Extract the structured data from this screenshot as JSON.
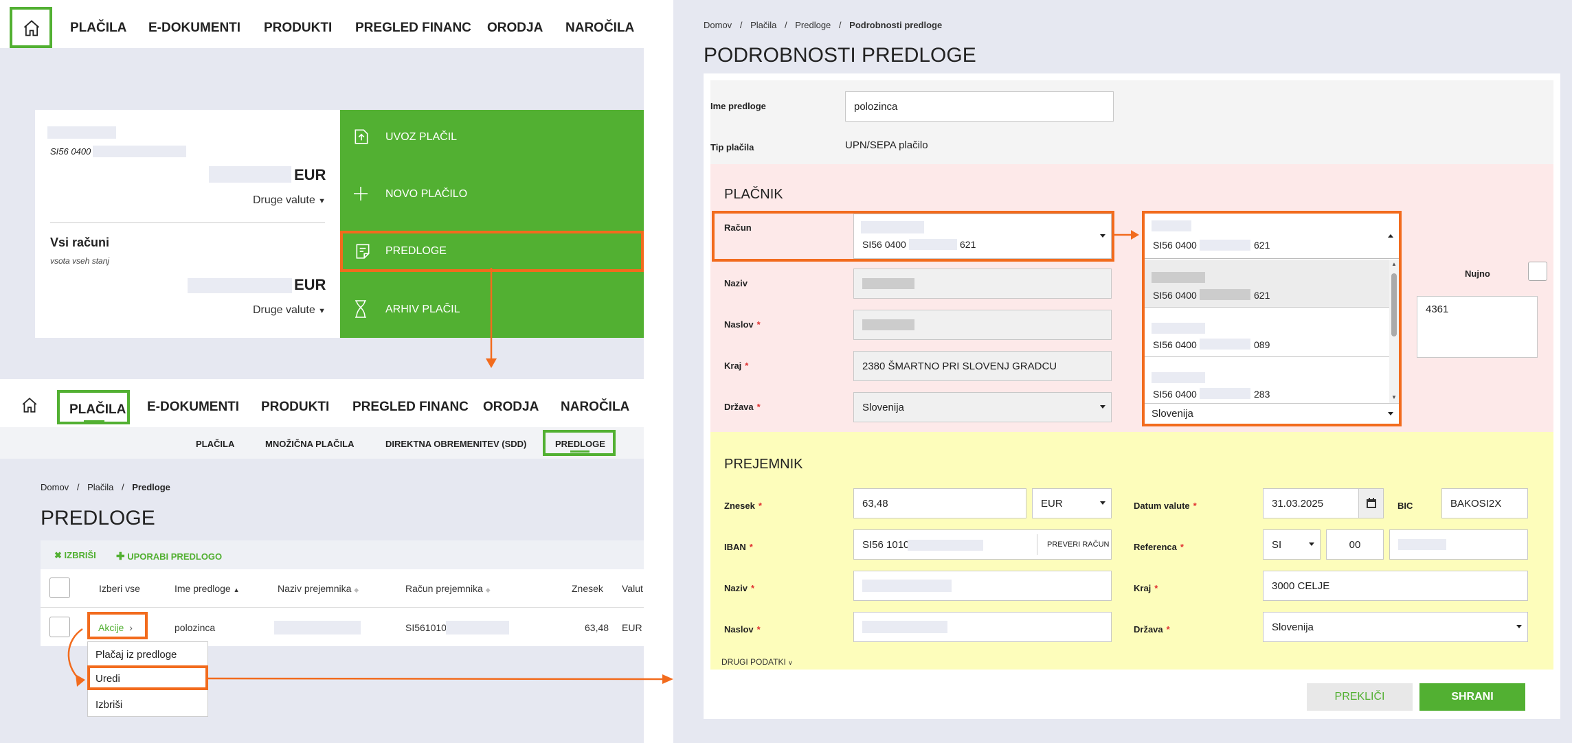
{
  "left_top": {
    "nav": [
      "PLAČILA",
      "E-DOKUMENTI",
      "PRODUKTI",
      "PREGLED FINANC",
      "ORODJA",
      "NAROČILA"
    ],
    "account": {
      "iban_prefix": "SI56 0400",
      "currency": "EUR",
      "other_currencies": "Druge valute"
    },
    "all_accounts": {
      "title": "Vsi računi",
      "subtitle": "vsota vseh stanj",
      "currency": "EUR",
      "other_currencies": "Druge valute"
    },
    "menu": [
      "UVOZ PLAČIL",
      "NOVO PLAČILO",
      "PREDLOGE",
      "ARHIV PLAČIL"
    ]
  },
  "left_bottom": {
    "nav": [
      "PLAČILA",
      "E-DOKUMENTI",
      "PRODUKTI",
      "PREGLED FINANC",
      "ORODJA",
      "NAROČILA"
    ],
    "subnav": [
      "PLAČILA",
      "MNOŽIČNA PLAČILA",
      "DIREKTNA OBREMENITEV (SDD)",
      "PREDLOGE"
    ],
    "breadcrumb": [
      "Domov",
      "Plačila",
      "Predloge"
    ],
    "title": "PREDLOGE",
    "toolbar": {
      "delete": "IZBRIŠI",
      "use": "UPORABI PREDLOGO"
    },
    "columns": [
      "Izberi vse",
      "Ime predloge",
      "Naziv prejemnika",
      "Račun prejemnika",
      "Znesek",
      "Valut"
    ],
    "row": {
      "action": "Akcije",
      "name": "polozinca",
      "account_prefix": "SI561010",
      "amount": "63,48",
      "currency": "EUR"
    },
    "menu": [
      "Plačaj iz predloge",
      "Uredi",
      "Izbriši"
    ]
  },
  "right": {
    "breadcrumb": [
      "Domov",
      "Plačila",
      "Predloge",
      "Podrobnosti predloge"
    ],
    "title": "PODROBNOSTI PREDLOGE",
    "template_name_label": "Ime predloge",
    "template_name": "polozinca",
    "type_label": "Tip plačila",
    "type": "UPN/SEPA plačilo",
    "payer": {
      "title": "PLAČNIK",
      "account_label": "Račun",
      "account_prefix": "SI56 0400",
      "account_suffix": "621",
      "name_label": "Naziv",
      "address_label": "Naslov",
      "city_label": "Kraj",
      "city": "2380 ŠMARTNO PRI SLOVENJ GRADCU",
      "country_label": "Država",
      "country": "Slovenija",
      "urgent_label": "Nujno",
      "purpose_value": "4361",
      "dropdown": [
        {
          "prefix": "SI56 0400",
          "suffix": "621"
        },
        {
          "prefix": "SI56 0400",
          "suffix": "089"
        },
        {
          "prefix": "SI56 0400",
          "suffix": "283"
        }
      ]
    },
    "payee": {
      "title": "PREJEMNIK",
      "amount_label": "Znesek",
      "amount": "63,48",
      "currency": "EUR",
      "date_label": "Datum valute",
      "date": "31.03.2025",
      "bic_label": "BIC",
      "bic": "BAKOSI2X",
      "iban_label": "IBAN",
      "iban_prefix": "SI56 1010",
      "check_button": "PREVERI RAČUN",
      "reference_label": "Referenca",
      "ref_model": "SI",
      "ref_num": "00",
      "name_label": "Naziv",
      "city_label": "Kraj",
      "city": "3000 CELJE",
      "address_label": "Naslov",
      "country_label": "Država",
      "country": "Slovenija",
      "more": "DRUGI PODATKI"
    },
    "buttons": {
      "cancel": "PREKLIČI",
      "save": "SHRANI"
    }
  },
  "colors": {
    "green": "#52b032",
    "orange": "#f26b1d",
    "payer_bg": "#fde9e9",
    "payee_bg": "#fdfdbb"
  }
}
